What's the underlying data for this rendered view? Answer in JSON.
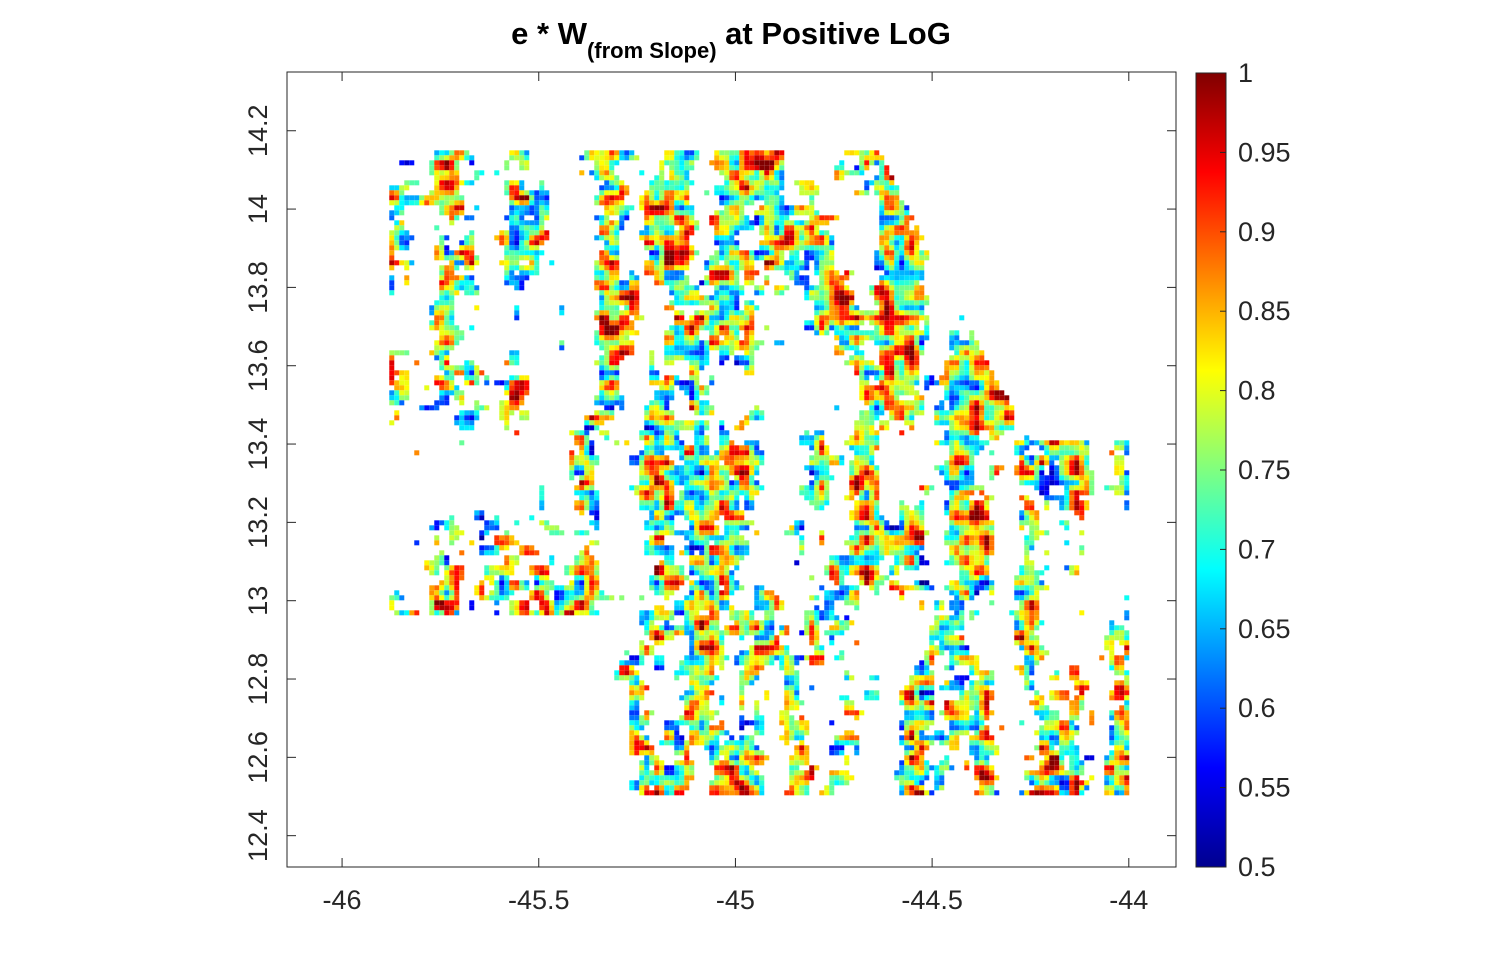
{
  "chart_data": {
    "type": "heatmap",
    "title": {
      "prefix": "e * W",
      "subscript": "(from Slope)",
      "suffix": " at Positive LoG"
    },
    "xlabel": "",
    "ylabel": "",
    "xlim": [
      -46.14,
      -43.88
    ],
    "ylim": [
      12.32,
      14.35
    ],
    "x_ticks": [
      -46,
      -45.5,
      -45,
      -44.5,
      -44
    ],
    "x_tick_labels": [
      "-46",
      "-45.5",
      "-45",
      "-44.5",
      "-44"
    ],
    "y_ticks": [
      12.4,
      12.6,
      12.8,
      13.0,
      13.2,
      13.4,
      13.6,
      13.8,
      14.0,
      14.2
    ],
    "y_tick_labels": [
      "12.4",
      "12.6",
      "12.8",
      "13",
      "13.2",
      "13.4",
      "13.6",
      "13.8",
      "14",
      "14.2"
    ],
    "data_extent": {
      "x": [
        -45.88,
        -44.0
      ],
      "y": [
        12.51,
        14.15
      ]
    },
    "colorbar": {
      "colormap": "jet",
      "range": [
        0.5,
        1
      ],
      "ticks": [
        0.5,
        0.55,
        0.6,
        0.65,
        0.7,
        0.75,
        0.8,
        0.85,
        0.9,
        0.95,
        1
      ],
      "tick_labels": [
        "0.5",
        "0.55",
        "0.6",
        "0.65",
        "0.7",
        "0.75",
        "0.8",
        "0.85",
        "0.9",
        "0.95",
        "1"
      ]
    },
    "grid": false,
    "legend": "none"
  }
}
